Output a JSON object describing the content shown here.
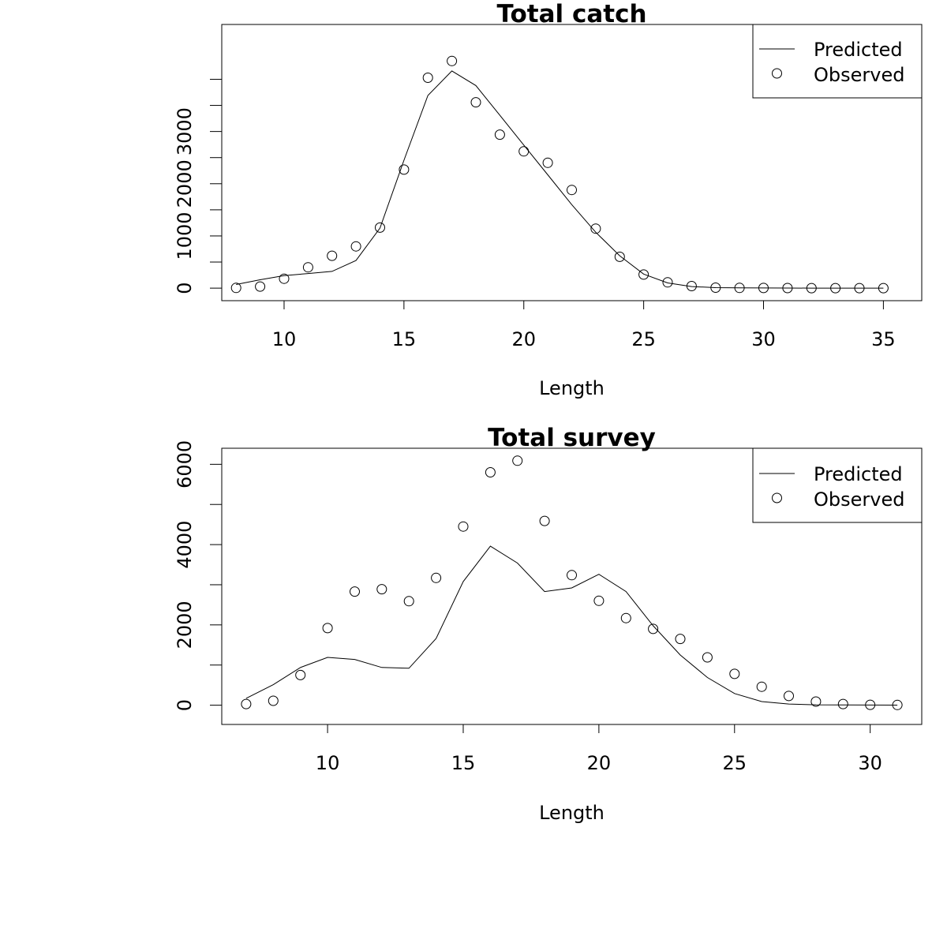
{
  "chart_data": [
    {
      "type": "line",
      "title": "Total catch",
      "xlabel": "Length",
      "ylabel": "",
      "xlim": [
        7.4,
        36.6
      ],
      "ylim": [
        -240,
        5050
      ],
      "x_ticks": [
        10,
        15,
        20,
        25,
        30,
        35
      ],
      "x_tick_labels": [
        "10",
        "15",
        "20",
        "25",
        "30",
        "35"
      ],
      "y_ticks": [
        0,
        500,
        1000,
        1500,
        2000,
        2500,
        3000,
        3500,
        4000
      ],
      "y_tick_labels": [
        "0",
        "",
        "1000",
        "",
        "2000",
        "",
        "3000",
        "",
        ""
      ],
      "legend": {
        "position": "top-right",
        "entries": [
          "Predicted",
          "Observed"
        ]
      },
      "series": [
        {
          "name": "Predicted",
          "style": "line",
          "x": [
            8,
            9,
            10,
            11,
            12,
            13,
            14,
            15,
            16,
            17,
            18,
            19,
            20,
            21,
            22,
            23,
            24,
            25,
            26,
            27,
            28,
            29,
            30,
            31,
            32,
            33,
            34,
            35
          ],
          "values": [
            70,
            160,
            240,
            280,
            320,
            530,
            1150,
            2450,
            3690,
            4160,
            3880,
            3310,
            2740,
            2170,
            1600,
            1070,
            620,
            270,
            100,
            30,
            10,
            5,
            3,
            2,
            1,
            1,
            0,
            0
          ]
        },
        {
          "name": "Observed",
          "style": "points",
          "x": [
            8,
            9,
            10,
            11,
            12,
            13,
            14,
            15,
            16,
            17,
            18,
            19,
            20,
            21,
            22,
            23,
            24,
            25,
            26,
            27,
            28,
            29,
            30,
            31,
            32,
            33,
            34,
            35
          ],
          "values": [
            5,
            30,
            180,
            400,
            620,
            800,
            1160,
            2270,
            4030,
            4350,
            3560,
            2940,
            2620,
            2400,
            1880,
            1140,
            600,
            260,
            110,
            40,
            10,
            5,
            3,
            2,
            1,
            1,
            0,
            0
          ]
        }
      ]
    },
    {
      "type": "line",
      "title": "Total survey",
      "xlabel": "Length",
      "ylabel": "",
      "xlim": [
        6.1,
        31.9
      ],
      "ylim": [
        -480,
        6400
      ],
      "x_ticks": [
        10,
        15,
        20,
        25,
        30
      ],
      "x_tick_labels": [
        "10",
        "15",
        "20",
        "25",
        "30"
      ],
      "y_ticks": [
        0,
        1000,
        2000,
        3000,
        4000,
        5000,
        6000
      ],
      "y_tick_labels": [
        "0",
        "",
        "2000",
        "",
        "4000",
        "",
        "6000"
      ],
      "legend": {
        "position": "top-right",
        "entries": [
          "Predicted",
          "Observed"
        ]
      },
      "series": [
        {
          "name": "Predicted",
          "style": "line",
          "x": [
            7,
            8,
            9,
            10,
            11,
            12,
            13,
            14,
            15,
            16,
            17,
            18,
            19,
            20,
            21,
            22,
            23,
            24,
            25,
            26,
            27,
            28,
            29,
            30,
            31
          ],
          "values": [
            170,
            510,
            940,
            1190,
            1140,
            940,
            920,
            1660,
            3080,
            3960,
            3540,
            2830,
            2920,
            3260,
            2830,
            1980,
            1250,
            690,
            290,
            90,
            30,
            10,
            5,
            3,
            2
          ]
        },
        {
          "name": "Observed",
          "style": "points",
          "x": [
            7,
            8,
            9,
            10,
            11,
            12,
            13,
            14,
            15,
            16,
            17,
            18,
            19,
            20,
            21,
            22,
            23,
            24,
            25,
            26,
            27,
            28,
            29,
            30,
            31
          ],
          "values": [
            30,
            110,
            750,
            1920,
            2830,
            2890,
            2590,
            3170,
            4450,
            5800,
            6090,
            4590,
            3240,
            2600,
            2170,
            1900,
            1650,
            1190,
            780,
            460,
            230,
            90,
            30,
            10,
            5
          ]
        }
      ]
    }
  ]
}
